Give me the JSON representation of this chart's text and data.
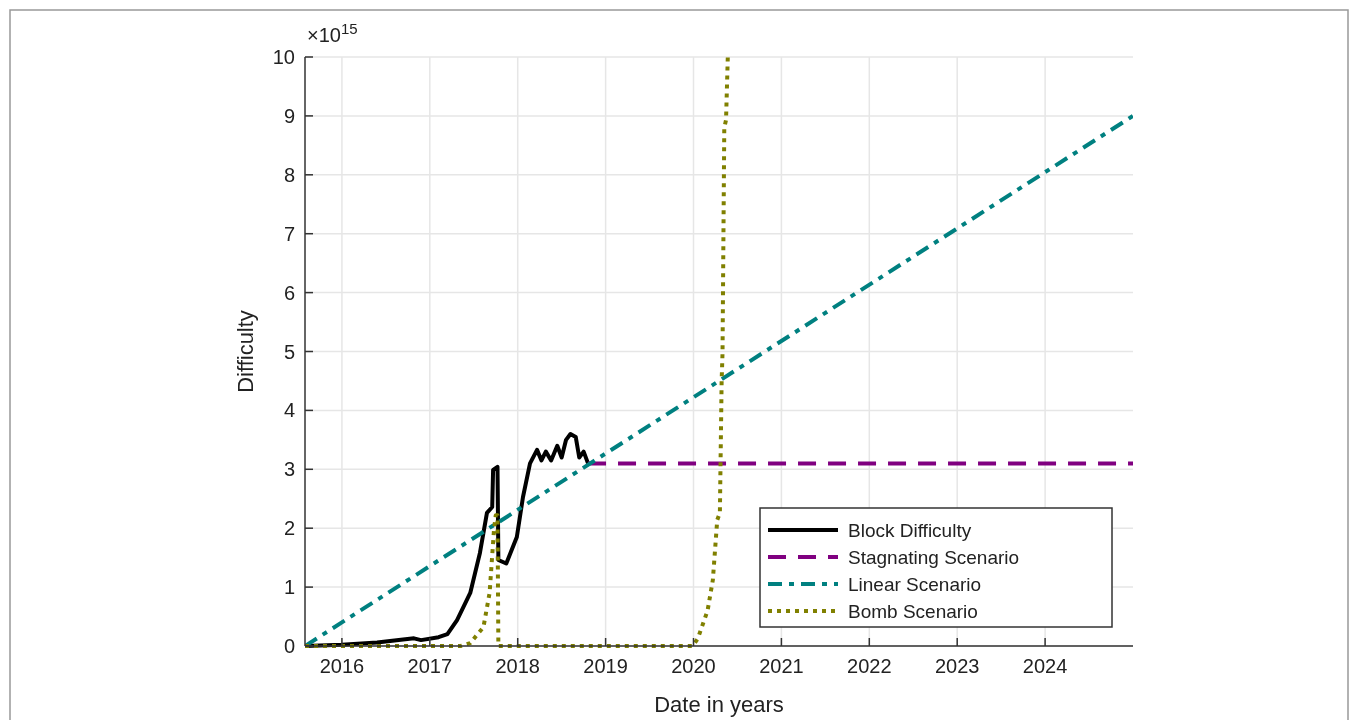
{
  "chart_data": {
    "type": "line",
    "xlabel": "Date in years",
    "ylabel": "Difficulty",
    "annotations": [
      "×10$^{15}$"
    ],
    "xlim": [
      2015.58,
      2025
    ],
    "xticks": [
      2016,
      2017,
      2018,
      2019,
      2020,
      2021,
      2022,
      2023,
      2024
    ],
    "ylim": [
      0,
      10
    ],
    "yticks": [
      0,
      1,
      2,
      3,
      4,
      5,
      6,
      7,
      8,
      9,
      10
    ],
    "grid": true,
    "legend": "bottom right",
    "series": [
      {
        "name": "Block Difficulty",
        "color": "#000000",
        "line_style": "solid",
        "x": [
          2015.58,
          2016.0,
          2016.4,
          2016.82,
          2016.9,
          2017.1,
          2017.2,
          2017.31,
          2017.46,
          2017.57,
          2017.65,
          2017.71,
          2017.72,
          2017.77,
          2017.78,
          2017.87,
          2017.99,
          2018.06,
          2018.14,
          2018.22,
          2018.27,
          2018.32,
          2018.38,
          2018.45,
          2018.5,
          2018.55,
          2018.6,
          2018.66,
          2018.7,
          2018.75,
          2018.8
        ],
        "values": [
          0,
          0.02,
          0.06,
          0.13,
          0.1,
          0.15,
          0.2,
          0.44,
          0.9,
          1.58,
          2.26,
          2.36,
          2.99,
          3.04,
          1.46,
          1.4,
          1.85,
          2.53,
          3.1,
          3.33,
          3.15,
          3.3,
          3.15,
          3.4,
          3.2,
          3.5,
          3.6,
          3.55,
          3.2,
          3.3,
          3.1
        ]
      },
      {
        "name": "Stagnating Scenario",
        "color": "#800080",
        "line_style": "dashed",
        "x": [
          2018.8,
          2025
        ],
        "values": [
          3.1,
          3.1
        ]
      },
      {
        "name": "Linear Scenario",
        "color": "#008080",
        "line_style": "dashdot",
        "x": [
          2015.58,
          2025
        ],
        "values": [
          0,
          9.0
        ]
      },
      {
        "name": "Bomb Scenario",
        "color": "#808000",
        "line_style": "dotted",
        "x": [
          2015.58,
          2017.35,
          2017.46,
          2017.61,
          2017.68,
          2017.73,
          2017.75,
          2017.77,
          2017.78,
          2019.99,
          2020.05,
          2020.16,
          2020.22,
          2020.27,
          2020.3,
          2020.32,
          2020.33,
          2020.35,
          2020.37,
          2020.39
        ],
        "values": [
          0,
          0,
          0.05,
          0.32,
          0.9,
          1.97,
          2.22,
          2.22,
          0,
          0,
          0.13,
          0.6,
          1.12,
          2.14,
          2.26,
          4.5,
          4.97,
          8.8,
          8.93,
          10
        ]
      }
    ]
  }
}
